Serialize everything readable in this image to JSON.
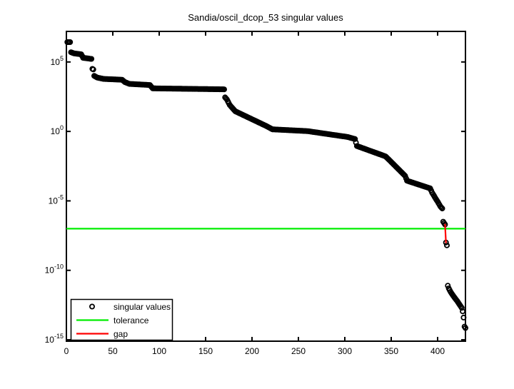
{
  "chart_data": {
    "type": "scatter",
    "title": "Sandia/oscil_dcop_53 singular values",
    "xlabel": "",
    "ylabel": "",
    "grid": false,
    "x_axis": {
      "lim": [
        0,
        430
      ],
      "tick_labels": [
        "0",
        "50",
        "100",
        "150",
        "200",
        "250",
        "300",
        "350",
        "400"
      ],
      "tick_values": [
        0,
        50,
        100,
        150,
        200,
        250,
        300,
        350,
        400
      ]
    },
    "y_axis": {
      "scale": "log10",
      "lim_log10": [
        -15.1,
        7.2
      ],
      "tick_exponents": [
        5,
        0,
        -5,
        -10,
        -15
      ],
      "tick_base": "10"
    },
    "n_singular_values": 430,
    "series": [
      {
        "name": "singular values",
        "kind": "markers",
        "marker": "circle",
        "color": "#000000",
        "interpolation": "linear in log10 between anchor indices",
        "values_log10_anchors": [
          [
            1,
            6.43
          ],
          [
            4,
            6.43
          ],
          [
            5,
            5.7
          ],
          [
            8,
            5.62
          ],
          [
            16,
            5.55
          ],
          [
            18,
            5.3
          ],
          [
            27,
            5.22
          ],
          [
            28,
            4.5
          ],
          [
            29,
            4.46
          ],
          [
            30,
            4.0
          ],
          [
            33,
            3.88
          ],
          [
            40,
            3.78
          ],
          [
            60,
            3.72
          ],
          [
            63,
            3.55
          ],
          [
            68,
            3.42
          ],
          [
            90,
            3.34
          ],
          [
            93,
            3.1
          ],
          [
            170,
            3.03
          ],
          [
            171,
            2.45
          ],
          [
            173,
            2.3
          ],
          [
            176,
            1.9
          ],
          [
            182,
            1.45
          ],
          [
            215,
            0.4
          ],
          [
            222,
            0.15
          ],
          [
            260,
            0.02
          ],
          [
            303,
            -0.4
          ],
          [
            311,
            -0.55
          ],
          [
            313,
            -1.05
          ],
          [
            344,
            -1.8
          ],
          [
            365,
            -3.2
          ],
          [
            367,
            -3.55
          ],
          [
            392,
            -4.1
          ],
          [
            394,
            -4.4
          ],
          [
            396,
            -4.62
          ],
          [
            398,
            -4.85
          ],
          [
            400,
            -5.05
          ],
          [
            403,
            -5.4
          ],
          [
            405,
            -5.55
          ],
          [
            406,
            -6.5
          ],
          [
            408,
            -6.7
          ],
          [
            409,
            -8.0
          ],
          [
            410,
            -8.2
          ],
          [
            411,
            -11.1
          ],
          [
            412,
            -11.3
          ],
          [
            414,
            -11.55
          ],
          [
            417,
            -11.85
          ],
          [
            421,
            -12.2
          ],
          [
            426,
            -12.7
          ],
          [
            427,
            -12.95
          ],
          [
            428,
            -13.4
          ],
          [
            429,
            -14.05
          ],
          [
            430,
            -14.15
          ]
        ]
      },
      {
        "name": "tolerance",
        "kind": "hline",
        "value": "1e-07",
        "value_log10": -7,
        "color": "#00EE00"
      },
      {
        "name": "gap",
        "kind": "segment",
        "from": {
          "index": 408,
          "value_log10": -6.7
        },
        "to": {
          "index": 409,
          "value_log10": -8.0
        },
        "color": "#FF0000"
      }
    ],
    "legend": {
      "position": "lower-left",
      "items": [
        {
          "label": "singular values",
          "sample": "circle-marker",
          "color": "#000000"
        },
        {
          "label": "tolerance",
          "sample": "line",
          "color": "#00EE00"
        },
        {
          "label": "gap",
          "sample": "line",
          "color": "#FF0000"
        }
      ]
    }
  }
}
